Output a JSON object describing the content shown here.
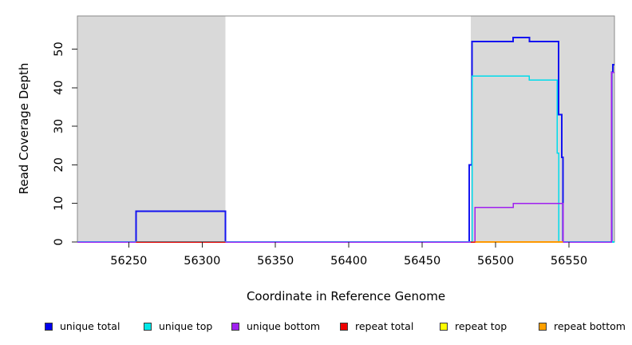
{
  "chart_data": {
    "type": "line",
    "title": "",
    "xlabel": "Coordinate in Reference Genome",
    "ylabel": "Read Coverage Depth",
    "xlim": [
      56215,
      56581
    ],
    "ylim": [
      0,
      58.6
    ],
    "x_ticks": [
      56250,
      56300,
      56350,
      56400,
      56450,
      56500,
      56550
    ],
    "y_ticks": [
      0,
      10,
      20,
      30,
      40,
      50
    ],
    "grid": false,
    "legend_position": "bottom",
    "shade_color": "#d9d9d9",
    "plot_border_color": "#8a8a8a",
    "shaded_regions": [
      {
        "x0": 56215,
        "x1": 56316
      },
      {
        "x0": 56483,
        "x1": 56581
      }
    ],
    "series": [
      {
        "name": "unique total",
        "color": "#1414f0",
        "width": 2,
        "segments": [
          [
            [
              56215,
              0
            ],
            [
              56255,
              0
            ],
            [
              56255,
              8
            ],
            [
              56316,
              8
            ],
            [
              56316,
              0
            ],
            [
              56482,
              0
            ],
            [
              56482,
              20
            ],
            [
              56484,
              20
            ],
            [
              56484,
              52
            ],
            [
              56512,
              52
            ],
            [
              56512,
              53
            ],
            [
              56523,
              53
            ],
            [
              56523,
              52
            ],
            [
              56543,
              52
            ],
            [
              56543,
              33
            ],
            [
              56545,
              33
            ],
            [
              56545,
              22
            ],
            [
              56546,
              22
            ],
            [
              56546,
              0
            ],
            [
              56579,
              0
            ],
            [
              56579,
              44
            ],
            [
              56580,
              44
            ],
            [
              56580,
              46
            ],
            [
              56581,
              46
            ]
          ]
        ]
      },
      {
        "name": "unique top",
        "color": "#00dcec",
        "width": 1.6,
        "segments": [
          [
            [
              56215,
              0
            ],
            [
              56484,
              0
            ],
            [
              56484,
              43
            ],
            [
              56523,
              43
            ],
            [
              56523,
              42
            ],
            [
              56542,
              42
            ],
            [
              56542,
              23
            ],
            [
              56543,
              23
            ],
            [
              56543,
              0
            ],
            [
              56581,
              0
            ]
          ]
        ]
      },
      {
        "name": "unique bottom",
        "color": "#a020f0",
        "width": 1.5,
        "segments": [
          [
            [
              56215,
              0
            ],
            [
              56486,
              0
            ],
            [
              56486,
              9
            ],
            [
              56512,
              9
            ],
            [
              56512,
              10
            ],
            [
              56546,
              10
            ],
            [
              56546,
              0
            ],
            [
              56579,
              0
            ],
            [
              56579,
              44
            ],
            [
              56581,
              44
            ]
          ]
        ]
      },
      {
        "name": "repeat total",
        "color": "#e60000",
        "width": 1.5,
        "segments": [
          [
            [
              56255,
              0
            ],
            [
              56316,
              0
            ]
          ],
          [
            [
              56483,
              0
            ],
            [
              56487,
              0
            ]
          ]
        ]
      },
      {
        "name": "repeat top",
        "color": "#ffff00",
        "width": 1.5,
        "segments": [
          [
            [
              56486,
              0
            ],
            [
              56546,
              0
            ]
          ]
        ]
      },
      {
        "name": "repeat bottom",
        "color": "#ff9900",
        "width": 1.8,
        "segments": [
          [
            [
              56486,
              0
            ],
            [
              56546,
              0
            ]
          ]
        ]
      }
    ]
  },
  "legend": {
    "items": [
      {
        "label": "unique total",
        "color": "#0000ee"
      },
      {
        "label": "unique top",
        "color": "#00e8e8"
      },
      {
        "label": "unique bottom",
        "color": "#a020f0"
      },
      {
        "label": "repeat total",
        "color": "#ee0000"
      },
      {
        "label": "repeat top",
        "color": "#ffff00"
      },
      {
        "label": "repeat bottom",
        "color": "#ffa000"
      }
    ]
  }
}
